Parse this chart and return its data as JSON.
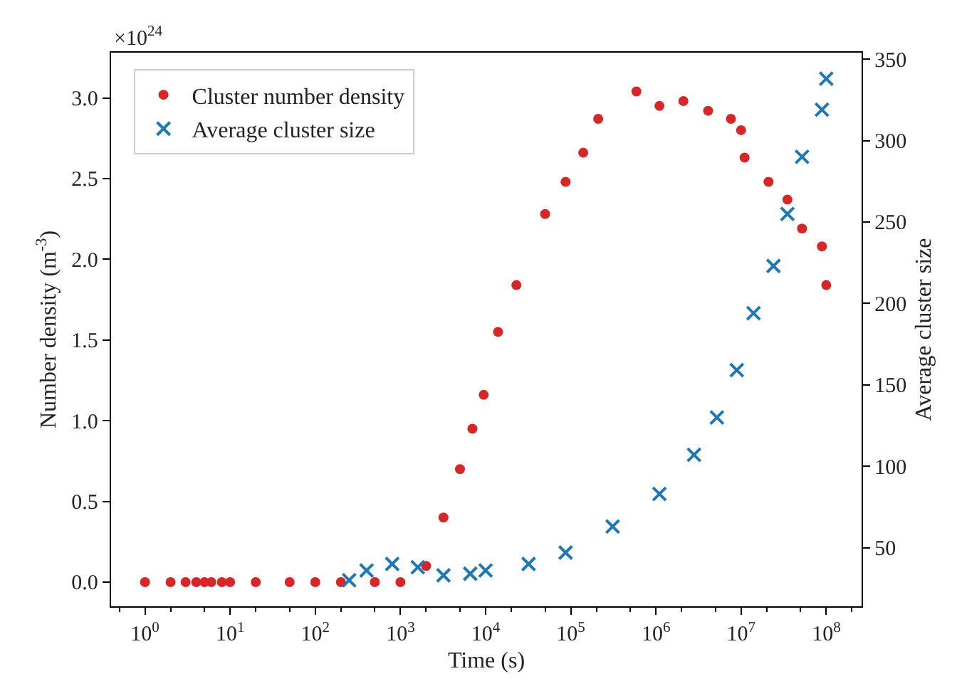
{
  "chart_data": {
    "type": "scatter",
    "xlabel": "Time (s)",
    "ylabel": "Number density (m$^{-3}$)",
    "y2label": "Average cluster size",
    "annotations": [
      "×10$^{24}$"
    ],
    "log": "x",
    "legend": "top left",
    "xlim": [
      0.4,
      260000000
    ],
    "xticks": [
      {
        "value": 1,
        "label": "10$^{0}$"
      },
      {
        "value": 10,
        "label": "10$^{1}$"
      },
      {
        "value": 100,
        "label": "10$^{2}$"
      },
      {
        "value": 1000,
        "label": "10$^{3}$"
      },
      {
        "value": 10000,
        "label": "10$^{4}$"
      },
      {
        "value": 100000,
        "label": "10$^{5}$"
      },
      {
        "value": 1000000,
        "label": "10$^{6}$"
      },
      {
        "value": 10000000,
        "label": "10$^{7}$"
      },
      {
        "value": 100000000,
        "label": "10$^{8}$"
      }
    ],
    "ylim": [
      -0.15,
      3.28
    ],
    "yticks": [
      {
        "value": 0,
        "label": "0.0"
      },
      {
        "value": 0.5,
        "label": "0.5"
      },
      {
        "value": 1,
        "label": "1.0"
      },
      {
        "value": 1.5,
        "label": "1.5"
      },
      {
        "value": 2,
        "label": "2.0"
      },
      {
        "value": 2.5,
        "label": "2.5"
      },
      {
        "value": 3,
        "label": "3.0"
      }
    ],
    "y2lim": [
      14,
      354
    ],
    "y2ticks": [
      50,
      100,
      150,
      200,
      250,
      300,
      350
    ],
    "series": [
      {
        "name": "Cluster number density",
        "color": "#d62728",
        "marker": "circle",
        "x": [
          1,
          2,
          3,
          4,
          5,
          6,
          8,
          10,
          20,
          50,
          100,
          200,
          500,
          1000,
          2000,
          3200,
          5000,
          7000,
          9500,
          14000,
          23000,
          50000,
          87000,
          140000,
          210000,
          590000,
          1100000,
          2100000,
          4100000,
          7600000,
          10000000,
          11000000,
          21000000,
          35000000,
          52000000,
          89000000,
          100000000
        ],
        "values": [
          0,
          0,
          0,
          0,
          0,
          0,
          0,
          0,
          0,
          0,
          0,
          0,
          0,
          0,
          0.1,
          0.4,
          0.7,
          0.95,
          1.16,
          1.55,
          1.84,
          2.28,
          2.48,
          2.66,
          2.87,
          3.04,
          2.95,
          2.98,
          2.92,
          2.87,
          2.8,
          2.63,
          2.48,
          2.37,
          2.19,
          2.08,
          1.84
        ]
      },
      {
        "name": "Average cluster size",
        "color": "#1f77b4",
        "marker": "cross",
        "axis": "y2",
        "x": [
          250,
          400,
          800,
          1600,
          3200,
          6600,
          10000,
          32000,
          87000,
          310000,
          1100000,
          2800000,
          5200000,
          8900000,
          14000000,
          24000000,
          35000000,
          52000000,
          89000000,
          100000000
        ],
        "values": [
          30,
          36,
          40,
          38,
          33,
          34,
          36,
          40,
          47,
          63,
          83,
          107,
          130,
          159,
          194,
          223,
          255,
          290,
          319,
          338
        ]
      }
    ]
  }
}
